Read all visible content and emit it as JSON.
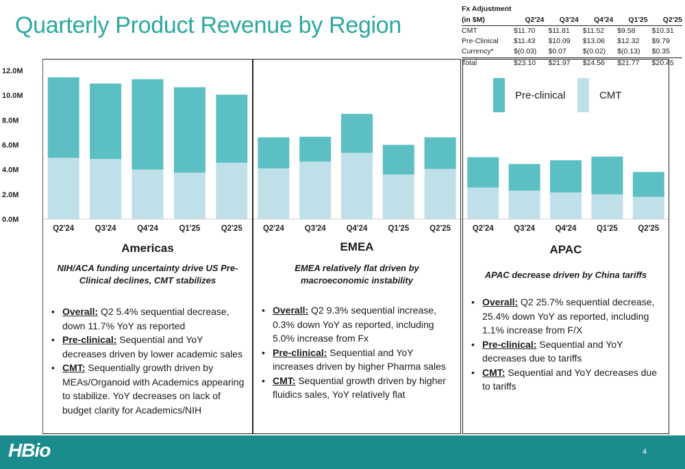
{
  "title": "Quarterly Product Revenue by Region",
  "colors": {
    "preclinical": "#5bbfc3",
    "cmt": "#c0e0e9",
    "title": "#2aa8a0",
    "footer": "#1b8c8d"
  },
  "fx_table": {
    "header_line1": "Fx Adjustment",
    "header_line2": "(in $M)",
    "columns": [
      "Q2'24",
      "Q3'24",
      "Q4'24",
      "Q1'25",
      "Q2'25"
    ],
    "rows": [
      {
        "label": "CMT",
        "values": [
          "11.70",
          "11.81",
          "11.52",
          "9.58",
          "10.31"
        ]
      },
      {
        "label": "Pre-Clinical",
        "values": [
          "11.43",
          "10.09",
          "13.06",
          "12.32",
          "9.79"
        ]
      },
      {
        "label": "Currency*",
        "values": [
          "(0.03)",
          "0.07",
          "(0.02)",
          "(0.13)",
          "0.35"
        ]
      },
      {
        "label": "Total",
        "values": [
          "23.10",
          "21.97",
          "24.56",
          "21.77",
          "20.45"
        ]
      }
    ]
  },
  "legend": {
    "preclinical": "Pre-clinical",
    "cmt": "CMT"
  },
  "chart_data": {
    "type": "bar",
    "stacked": true,
    "title": "",
    "ylim": [
      0,
      12
    ],
    "yticks": [
      "0.0M",
      "2.0M",
      "4.0M",
      "6.0M",
      "8.0M",
      "10.0M",
      "12.0M"
    ],
    "categories": [
      "Q2'24",
      "Q3'24",
      "Q4'24",
      "Q1'25",
      "Q2'25"
    ],
    "groups": [
      {
        "name": "Americas",
        "series": [
          {
            "name": "CMT",
            "values": [
              4.95,
              4.85,
              4.0,
              3.75,
              4.55
            ]
          },
          {
            "name": "Pre-clinical",
            "values": [
              6.5,
              6.1,
              7.3,
              6.9,
              5.5
            ]
          }
        ]
      },
      {
        "name": "EMEA",
        "series": [
          {
            "name": "CMT",
            "values": [
              4.1,
              4.65,
              5.35,
              3.6,
              4.05
            ]
          },
          {
            "name": "Pre-clinical",
            "values": [
              2.5,
              2.0,
              3.15,
              2.4,
              2.55
            ]
          }
        ]
      },
      {
        "name": "APAC",
        "series": [
          {
            "name": "CMT",
            "values": [
              2.55,
              2.3,
              2.15,
              2.0,
              1.8
            ]
          },
          {
            "name": "Pre-clinical",
            "values": [
              2.45,
              2.15,
              2.6,
              3.05,
              2.0
            ]
          }
        ]
      }
    ]
  },
  "regions": {
    "americas": {
      "name": "Americas",
      "subtitle": "NIH/ACA funding uncertainty drive US Pre-Clinical declines, CMT stabilizes",
      "bullets": [
        {
          "lead": "Overall:",
          "text": " Q2 5.4% sequential decrease, down 11.7% YoY as reported"
        },
        {
          "lead": "Pre-clinical:",
          "text": " Sequential and YoY decreases driven by lower academic sales"
        },
        {
          "lead": "CMT:",
          "text": " Sequentially growth driven by MEAs/Organoid with Academics appearing to stabilize. YoY decreases on lack of budget clarity for Academics/NIH"
        }
      ]
    },
    "emea": {
      "name": "EMEA",
      "subtitle": "EMEA relatively flat driven by macroeconomic instability",
      "bullets": [
        {
          "lead": "Overall:",
          "text": " Q2 9.3% sequential increase, 0.3% down YoY as reported, including 5.0% increase from Fx"
        },
        {
          "lead": "Pre-clinical:",
          "text": " Sequential and YoY increases driven by higher Pharma sales"
        },
        {
          "lead": "CMT:",
          "text": " Sequential growth driven by  higher fluidics sales, YoY relatively flat"
        }
      ]
    },
    "apac": {
      "name": "APAC",
      "subtitle": "APAC decrease driven by China tariffs",
      "bullets": [
        {
          "lead": "Overall:",
          "text": " Q2 25.7% sequential decrease, 25.4% down YoY as reported, including 1.1% increase from F/X"
        },
        {
          "lead": "Pre-clinical:",
          "text": " Sequential and YoY decreases due to tariffs"
        },
        {
          "lead": "CMT:",
          "text": "  Sequential and YoY decreases due to tariffs"
        }
      ]
    }
  },
  "footer": {
    "logo": "HBio",
    "page_number": "4"
  }
}
